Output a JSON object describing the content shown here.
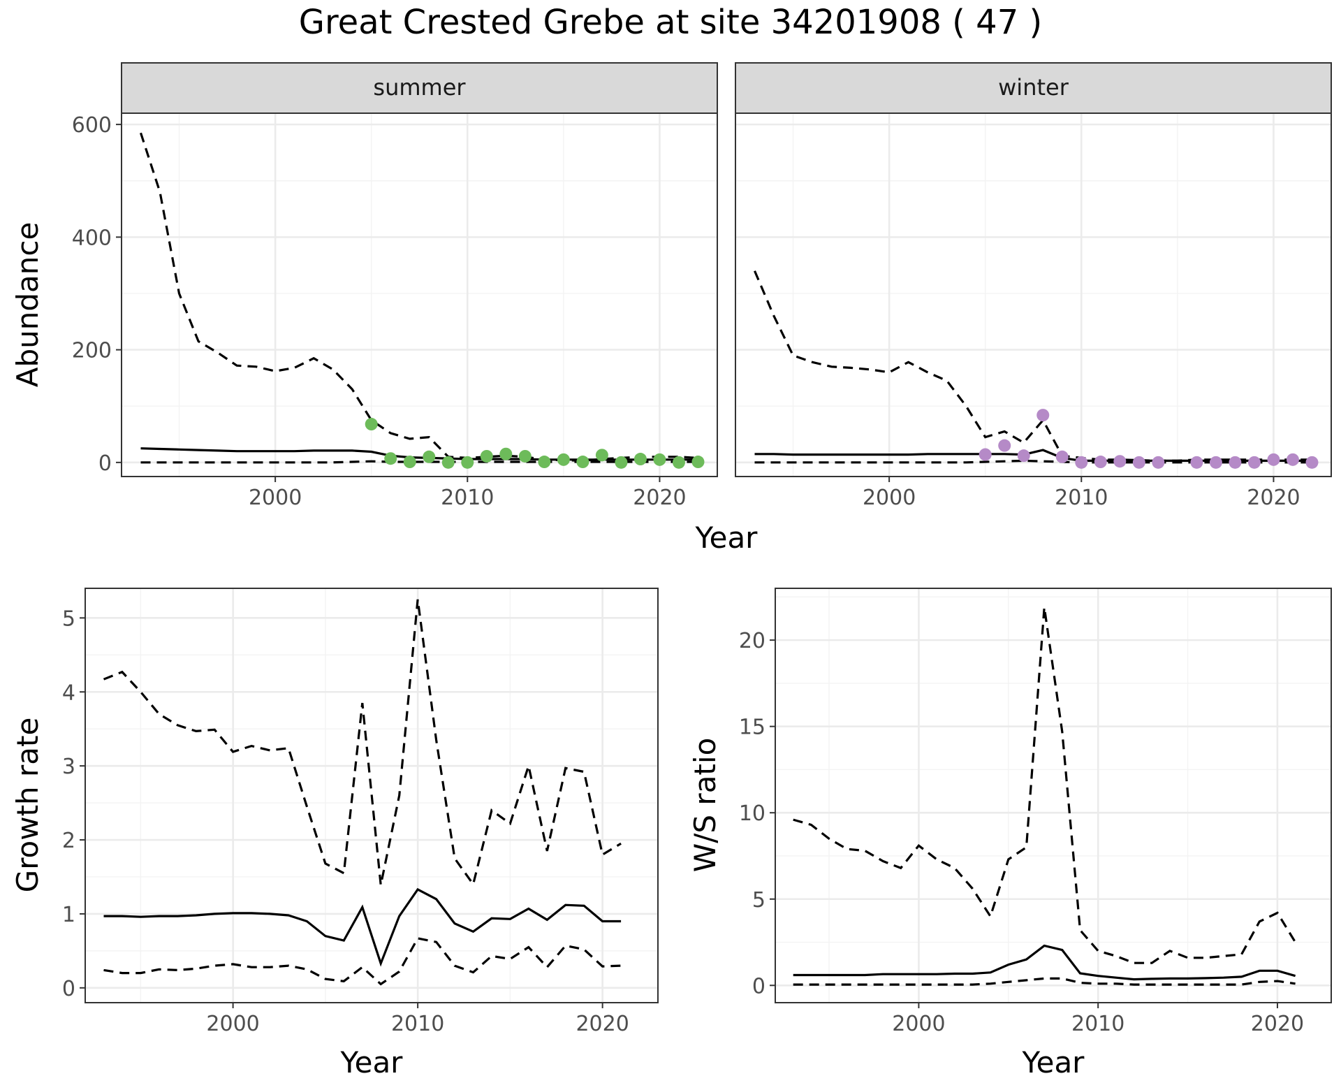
{
  "title": "Great Crested Grebe at site 34201908 ( 47 )",
  "colors": {
    "summer_points": "#6dbb5a",
    "winter_points": "#b58ac7",
    "strip_fill": "#d9d9d9",
    "lines": "#000000"
  },
  "chart_data": [
    {
      "type": "line",
      "panel": "summer",
      "strip": "summer",
      "xlabel": "Year",
      "ylabel": "Abundance",
      "xlim": [
        1992,
        2023
      ],
      "ylim": [
        -25,
        620
      ],
      "xticks": [
        2000,
        2010,
        2020
      ],
      "yticks": [
        0,
        200,
        400,
        600
      ],
      "x": [
        1993,
        1994,
        1995,
        1996,
        1997,
        1998,
        1999,
        2000,
        2001,
        2002,
        2003,
        2004,
        2005,
        2006,
        2007,
        2008,
        2009,
        2010,
        2011,
        2012,
        2013,
        2014,
        2015,
        2016,
        2017,
        2018,
        2019,
        2020,
        2021,
        2022
      ],
      "series": [
        {
          "role": "estimate",
          "values": [
            25,
            24,
            23,
            22,
            21,
            20,
            20,
            20,
            20,
            21,
            21,
            21,
            19,
            12,
            9,
            8,
            7,
            6,
            6,
            6,
            6,
            5,
            5,
            5,
            5,
            5,
            5,
            5,
            5,
            5
          ]
        },
        {
          "role": "upper",
          "values": [
            585,
            480,
            300,
            215,
            195,
            172,
            170,
            162,
            168,
            185,
            165,
            130,
            75,
            52,
            42,
            45,
            10,
            8,
            10,
            12,
            10,
            5,
            4,
            3,
            6,
            8,
            10,
            10,
            10,
            8
          ]
        },
        {
          "role": "lower",
          "values": [
            0,
            0,
            0,
            0,
            0,
            0,
            0,
            0,
            0,
            0,
            0,
            1,
            2,
            1,
            1,
            1,
            1,
            1,
            1,
            1,
            1,
            1,
            1,
            1,
            1,
            1,
            1,
            1,
            1,
            1
          ]
        }
      ],
      "points": {
        "x": [
          2005,
          2006,
          2007,
          2008,
          2009,
          2010,
          2011,
          2012,
          2013,
          2014,
          2015,
          2016,
          2017,
          2018,
          2019,
          2020,
          2021,
          2022
        ],
        "y": [
          68,
          7,
          1,
          10,
          0,
          0,
          11,
          15,
          11,
          1,
          5,
          1,
          13,
          0,
          6,
          5,
          0,
          1
        ]
      }
    },
    {
      "type": "line",
      "panel": "winter",
      "strip": "winter",
      "xlabel": "Year",
      "ylabel": "Abundance",
      "xlim": [
        1992,
        2023
      ],
      "ylim": [
        -25,
        620
      ],
      "xticks": [
        2000,
        2010,
        2020
      ],
      "yticks": [
        0,
        200,
        400,
        600
      ],
      "x": [
        1993,
        1994,
        1995,
        1996,
        1997,
        1998,
        1999,
        2000,
        2001,
        2002,
        2003,
        2004,
        2005,
        2006,
        2007,
        2008,
        2009,
        2010,
        2011,
        2012,
        2013,
        2014,
        2015,
        2016,
        2017,
        2018,
        2019,
        2020,
        2021,
        2022
      ],
      "series": [
        {
          "role": "estimate",
          "values": [
            15,
            15,
            14,
            14,
            14,
            14,
            14,
            14,
            14,
            15,
            15,
            15,
            15,
            15,
            14,
            22,
            8,
            3,
            3,
            3,
            3,
            3,
            3,
            3,
            3,
            3,
            3,
            3,
            3,
            3
          ]
        },
        {
          "role": "upper",
          "values": [
            340,
            260,
            190,
            178,
            170,
            168,
            165,
            160,
            178,
            160,
            145,
            100,
            45,
            55,
            35,
            75,
            12,
            8,
            5,
            5,
            4,
            3,
            3,
            5,
            5,
            5,
            5,
            5,
            5,
            5
          ]
        },
        {
          "role": "lower",
          "values": [
            0,
            0,
            0,
            0,
            0,
            0,
            0,
            0,
            0,
            0,
            0,
            0,
            1,
            2,
            3,
            2,
            1,
            0,
            0,
            0,
            0,
            0,
            0,
            0,
            0,
            0,
            0,
            0,
            0,
            0
          ]
        }
      ],
      "points": {
        "x": [
          2005,
          2006,
          2007,
          2008,
          2009,
          2010,
          2011,
          2012,
          2013,
          2014,
          2016,
          2017,
          2018,
          2019,
          2020,
          2021,
          2022
        ],
        "y": [
          14,
          30,
          12,
          84,
          10,
          0,
          1,
          2,
          0,
          0,
          0,
          0,
          0,
          0,
          5,
          5,
          0
        ]
      }
    },
    {
      "type": "line",
      "panel": "growth",
      "xlabel": "Year",
      "ylabel": "Growth rate",
      "xlim": [
        1992,
        2023
      ],
      "ylim": [
        -0.2,
        5.4
      ],
      "xticks": [
        2000,
        2010,
        2020
      ],
      "yticks": [
        0,
        1,
        2,
        3,
        4,
        5
      ],
      "x": [
        1993,
        1994,
        1995,
        1996,
        1997,
        1998,
        1999,
        2000,
        2001,
        2002,
        2003,
        2004,
        2005,
        2006,
        2007,
        2008,
        2009,
        2010,
        2011,
        2012,
        2013,
        2014,
        2015,
        2016,
        2017,
        2018,
        2019,
        2020,
        2021
      ],
      "series": [
        {
          "role": "estimate",
          "values": [
            0.97,
            0.97,
            0.96,
            0.97,
            0.97,
            0.98,
            1.0,
            1.01,
            1.01,
            1.0,
            0.98,
            0.9,
            0.7,
            0.64,
            1.09,
            0.33,
            0.97,
            1.33,
            1.2,
            0.87,
            0.76,
            0.94,
            0.93,
            1.07,
            0.92,
            1.12,
            1.11,
            0.9,
            0.9
          ]
        },
        {
          "role": "upper",
          "values": [
            4.17,
            4.27,
            4.0,
            3.7,
            3.55,
            3.47,
            3.49,
            3.19,
            3.27,
            3.21,
            3.24,
            2.45,
            1.68,
            1.55,
            3.85,
            1.39,
            2.6,
            5.25,
            3.35,
            1.75,
            1.4,
            2.4,
            2.22,
            3.0,
            1.85,
            2.97,
            2.92,
            1.8,
            1.95
          ]
        },
        {
          "role": "lower",
          "values": [
            0.24,
            0.2,
            0.2,
            0.25,
            0.24,
            0.26,
            0.3,
            0.32,
            0.28,
            0.28,
            0.3,
            0.25,
            0.12,
            0.09,
            0.28,
            0.05,
            0.22,
            0.67,
            0.62,
            0.3,
            0.21,
            0.43,
            0.39,
            0.55,
            0.28,
            0.57,
            0.52,
            0.29,
            0.3
          ]
        }
      ]
    },
    {
      "type": "line",
      "panel": "ws_ratio",
      "xlabel": "Year",
      "ylabel": "W/S ratio",
      "xlim": [
        1992,
        2023
      ],
      "ylim": [
        -1,
        23
      ],
      "xticks": [
        2000,
        2010,
        2020
      ],
      "yticks": [
        0,
        5,
        10,
        15,
        20
      ],
      "x": [
        1993,
        1994,
        1995,
        1996,
        1997,
        1998,
        1999,
        2000,
        2001,
        2002,
        2003,
        2004,
        2005,
        2006,
        2007,
        2008,
        2009,
        2010,
        2011,
        2012,
        2013,
        2014,
        2015,
        2016,
        2017,
        2018,
        2019,
        2020,
        2021
      ],
      "series": [
        {
          "role": "estimate",
          "values": [
            0.6,
            0.6,
            0.6,
            0.6,
            0.6,
            0.65,
            0.65,
            0.65,
            0.65,
            0.68,
            0.68,
            0.75,
            1.2,
            1.5,
            2.3,
            2.05,
            0.7,
            0.55,
            0.45,
            0.35,
            0.38,
            0.4,
            0.4,
            0.42,
            0.45,
            0.5,
            0.85,
            0.85,
            0.55
          ]
        },
        {
          "role": "upper",
          "values": [
            9.6,
            9.3,
            8.5,
            7.9,
            7.8,
            7.2,
            6.8,
            8.1,
            7.3,
            6.8,
            5.6,
            4.0,
            7.3,
            8.0,
            21.9,
            14.7,
            3.2,
            2.0,
            1.7,
            1.3,
            1.3,
            2.0,
            1.6,
            1.6,
            1.7,
            1.8,
            3.7,
            4.2,
            2.5
          ]
        },
        {
          "role": "lower",
          "values": [
            0.05,
            0.05,
            0.05,
            0.05,
            0.05,
            0.05,
            0.05,
            0.05,
            0.05,
            0.05,
            0.05,
            0.1,
            0.2,
            0.3,
            0.4,
            0.4,
            0.15,
            0.1,
            0.1,
            0.05,
            0.05,
            0.05,
            0.05,
            0.05,
            0.05,
            0.05,
            0.2,
            0.25,
            0.1
          ]
        }
      ]
    }
  ]
}
